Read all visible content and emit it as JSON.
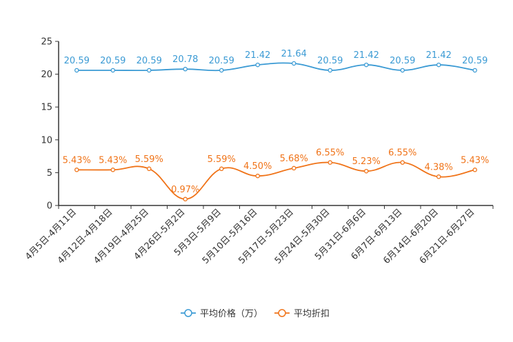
{
  "chart_data": {
    "type": "line",
    "title": "",
    "xlabel": "",
    "ylabel": "",
    "ylim": [
      0,
      25
    ],
    "yticks": [
      0,
      5,
      10,
      15,
      20,
      25
    ],
    "categories": [
      "4月5日-4月11日",
      "4月12日-4月18日",
      "4月19日-4月25日",
      "4月26日-5月2日",
      "5月3日-5月9日",
      "5月10日-5月16日",
      "5月17日-5月23日",
      "5月24日-5月30日",
      "5月31日-6月6日",
      "6月7日-6月13日",
      "6月14日-6月20日",
      "6月21日-6月27日"
    ],
    "series": [
      {
        "name": "平均价格（万）",
        "color": "#3a9ad4",
        "values": [
          20.59,
          20.59,
          20.59,
          20.78,
          20.59,
          21.42,
          21.64,
          20.59,
          21.42,
          20.59,
          21.42,
          20.59
        ],
        "labels": [
          "20.59",
          "20.59",
          "20.59",
          "20.78",
          "20.59",
          "21.42",
          "21.64",
          "20.59",
          "21.42",
          "20.59",
          "21.42",
          "20.59"
        ]
      },
      {
        "name": "平均折扣",
        "color": "#f07318",
        "values": [
          5.43,
          5.43,
          5.59,
          0.97,
          5.59,
          4.5,
          5.68,
          6.55,
          5.23,
          6.55,
          4.38,
          5.43
        ],
        "labels": [
          "5.43%",
          "5.43%",
          "5.59%",
          "0.97%",
          "5.59%",
          "4.50%",
          "5.68%",
          "6.55%",
          "5.23%",
          "6.55%",
          "4.38%",
          "5.43%"
        ]
      }
    ],
    "legend_position": "bottom-center",
    "grid": false
  }
}
